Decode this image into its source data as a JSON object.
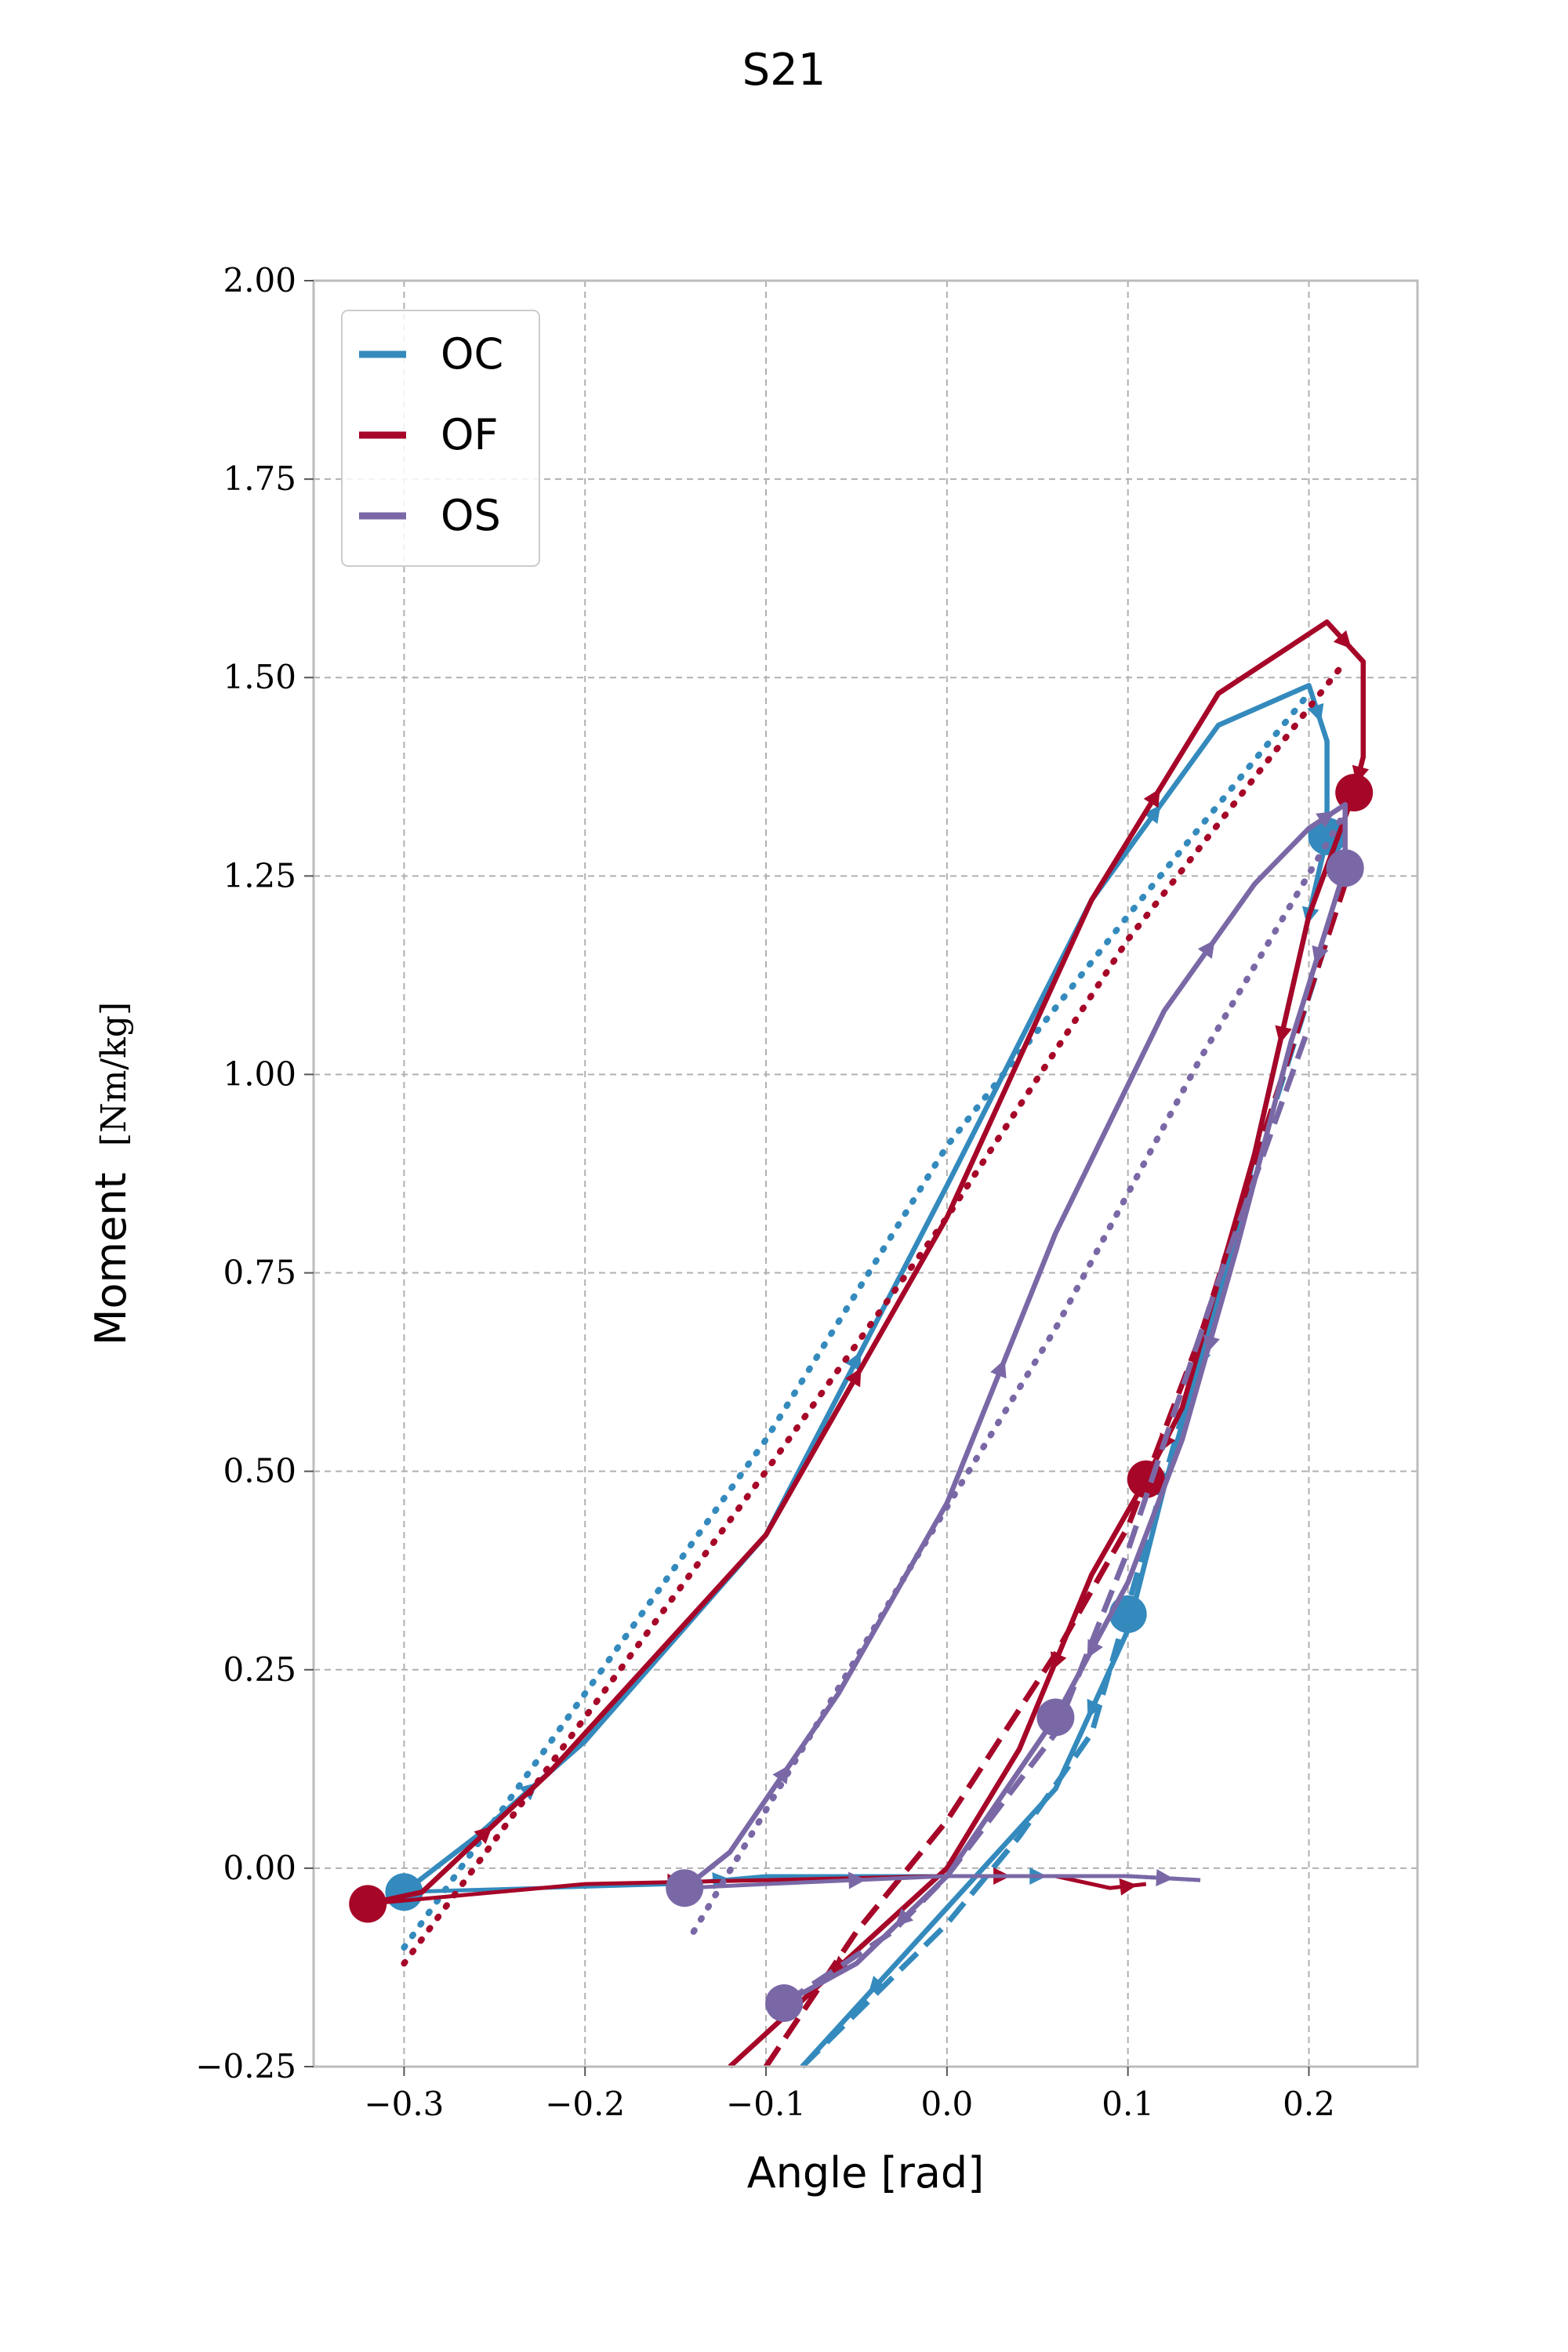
{
  "chart_data": {
    "type": "line",
    "title": "S21",
    "xlabel": "Angle [rad]",
    "ylabel": "Moment",
    "ylabel_unit": "[Nm/kg]",
    "xlim": [
      -0.35,
      0.26
    ],
    "ylim": [
      -0.25,
      2.0
    ],
    "xticks": [
      -0.3,
      -0.2,
      -0.1,
      0.0,
      0.1,
      0.2
    ],
    "xtick_labels": [
      "−0.3",
      "−0.2",
      "−0.1",
      "0.0",
      "0.1",
      "0.2"
    ],
    "yticks": [
      -0.25,
      0.0,
      0.25,
      0.5,
      0.75,
      1.0,
      1.25,
      1.5,
      1.75,
      2.0
    ],
    "ytick_labels": [
      "−0.25",
      "0.00",
      "0.25",
      "0.50",
      "0.75",
      "1.00",
      "1.25",
      "1.50",
      "1.75",
      "2.00"
    ],
    "grid": true,
    "legend_position": "top-left",
    "series": [
      {
        "name": "OC",
        "color": "#348abd",
        "loop": [
          [
            -0.3,
            -0.03
          ],
          [
            -0.26,
            0.04
          ],
          [
            -0.2,
            0.16
          ],
          [
            -0.1,
            0.42
          ],
          [
            0.0,
            0.86
          ],
          [
            0.08,
            1.22
          ],
          [
            0.15,
            1.44
          ],
          [
            0.2,
            1.49
          ],
          [
            0.21,
            1.42
          ],
          [
            0.21,
            1.3
          ],
          [
            0.19,
            1.1
          ],
          [
            0.16,
            0.8
          ],
          [
            0.12,
            0.48
          ],
          [
            0.1,
            0.3
          ],
          [
            0.06,
            0.1
          ],
          [
            0.0,
            -0.05
          ],
          [
            -0.08,
            -0.25
          ]
        ],
        "flat": [
          [
            -0.3,
            -0.03
          ],
          [
            -0.15,
            -0.02
          ],
          [
            -0.1,
            -0.01
          ],
          [
            0.0,
            -0.01
          ],
          [
            0.1,
            -0.01
          ],
          [
            0.14,
            -0.015
          ]
        ],
        "dashed": [
          [
            -0.08,
            -0.25
          ],
          [
            0.0,
            -0.07
          ],
          [
            0.04,
            0.04
          ],
          [
            0.08,
            0.17
          ],
          [
            0.11,
            0.41
          ],
          [
            0.16,
            0.81
          ],
          [
            0.21,
            1.17
          ]
        ],
        "dotted": [
          [
            -0.3,
            -0.1
          ],
          [
            -0.1,
            0.54
          ],
          [
            0.0,
            0.91
          ],
          [
            0.1,
            1.2
          ],
          [
            0.2,
            1.48
          ]
        ],
        "circles": [
          [
            -0.3,
            -0.03
          ],
          [
            0.1,
            0.32
          ],
          [
            0.21,
            1.3
          ]
        ]
      },
      {
        "name": "OF",
        "color": "#a60628",
        "loop": [
          [
            -0.32,
            -0.045
          ],
          [
            -0.29,
            -0.03
          ],
          [
            -0.22,
            0.12
          ],
          [
            -0.1,
            0.42
          ],
          [
            0.0,
            0.82
          ],
          [
            0.08,
            1.22
          ],
          [
            0.15,
            1.48
          ],
          [
            0.21,
            1.57
          ],
          [
            0.23,
            1.52
          ],
          [
            0.23,
            1.4
          ],
          [
            0.225,
            1.355
          ],
          [
            0.2,
            1.2
          ],
          [
            0.17,
            0.9
          ],
          [
            0.13,
            0.58
          ],
          [
            0.11,
            0.49
          ],
          [
            0.08,
            0.37
          ],
          [
            0.04,
            0.15
          ],
          [
            0.0,
            0.0
          ],
          [
            -0.12,
            -0.25
          ]
        ],
        "flat": [
          [
            -0.32,
            -0.045
          ],
          [
            -0.2,
            -0.02
          ],
          [
            -0.1,
            -0.015
          ],
          [
            0.0,
            -0.01
          ],
          [
            0.06,
            -0.01
          ],
          [
            0.09,
            -0.025
          ],
          [
            0.11,
            -0.02
          ]
        ],
        "dashed": [
          [
            -0.1,
            -0.25
          ],
          [
            -0.05,
            -0.08
          ],
          [
            0.0,
            0.06
          ],
          [
            0.06,
            0.27
          ],
          [
            0.1,
            0.43
          ],
          [
            0.14,
            0.67
          ],
          [
            0.18,
            0.96
          ],
          [
            0.22,
            1.24
          ]
        ],
        "dotted": [
          [
            -0.3,
            -0.12
          ],
          [
            -0.1,
            0.5
          ],
          [
            0.0,
            0.82
          ],
          [
            0.1,
            1.17
          ],
          [
            0.22,
            1.52
          ]
        ],
        "circles": [
          [
            -0.32,
            -0.045
          ],
          [
            0.11,
            0.49
          ],
          [
            0.225,
            1.355
          ]
        ]
      },
      {
        "name": "OS",
        "color": "#7a68a6",
        "loop": [
          [
            -0.145,
            -0.025
          ],
          [
            -0.12,
            0.02
          ],
          [
            -0.06,
            0.22
          ],
          [
            0.0,
            0.46
          ],
          [
            0.06,
            0.8
          ],
          [
            0.12,
            1.08
          ],
          [
            0.17,
            1.24
          ],
          [
            0.2,
            1.31
          ],
          [
            0.22,
            1.34
          ],
          [
            0.22,
            1.26
          ],
          [
            0.19,
            1.04
          ],
          [
            0.16,
            0.78
          ],
          [
            0.13,
            0.54
          ],
          [
            0.1,
            0.36
          ],
          [
            0.06,
            0.19
          ],
          [
            0.0,
            -0.01
          ],
          [
            -0.05,
            -0.12
          ],
          [
            -0.09,
            -0.17
          ]
        ],
        "flat": [
          [
            -0.145,
            -0.025
          ],
          [
            -0.1,
            -0.02
          ],
          [
            0.0,
            -0.01
          ],
          [
            0.1,
            -0.01
          ],
          [
            0.14,
            -0.015
          ]
        ],
        "dashed": [
          [
            -0.09,
            -0.17
          ],
          [
            -0.03,
            -0.08
          ],
          [
            0.0,
            -0.01
          ],
          [
            0.06,
            0.17
          ],
          [
            0.1,
            0.4
          ],
          [
            0.15,
            0.74
          ],
          [
            0.2,
            1.06
          ]
        ],
        "dotted": [
          [
            -0.14,
            -0.08
          ],
          [
            -0.02,
            0.38
          ],
          [
            0.06,
            0.68
          ],
          [
            0.14,
            1.02
          ],
          [
            0.22,
            1.33
          ]
        ],
        "circles": [
          [
            -0.145,
            -0.025
          ],
          [
            -0.09,
            -0.17
          ],
          [
            0.06,
            0.19
          ],
          [
            0.22,
            1.26
          ]
        ]
      }
    ]
  }
}
